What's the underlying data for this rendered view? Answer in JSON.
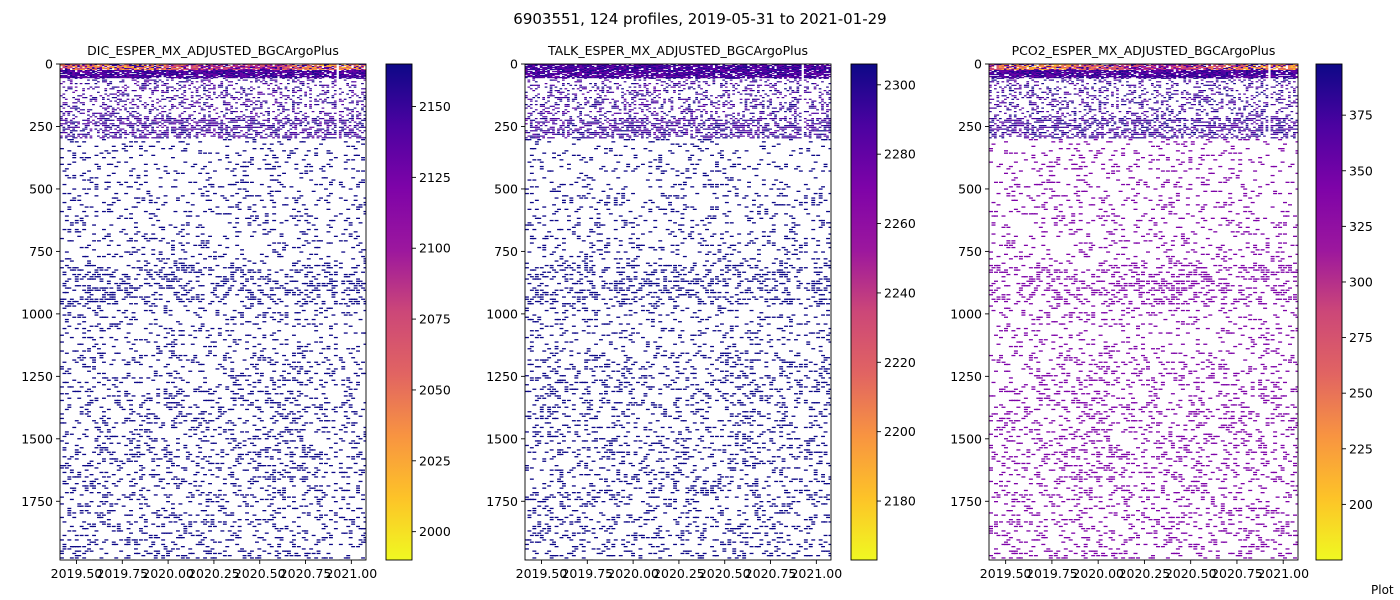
{
  "figure": {
    "suptitle": "6903551, 124 profiles, 2019-05-31 to 2021-01-29",
    "corner_text": "Plot"
  },
  "chart_data": [
    {
      "type": "heatmap",
      "title": "DIC_ESPER_MX_ADJUSTED_BGCArgoPlus",
      "x_range": [
        2019.41,
        2021.08
      ],
      "x_ticks": [
        2019.5,
        2019.75,
        2020.0,
        2020.25,
        2020.5,
        2020.75,
        2021.0
      ],
      "x_tick_labels": [
        "2019.50",
        "2019.75",
        "2020.00",
        "2020.25",
        "2020.50",
        "2020.75",
        "2021.00"
      ],
      "y_range": [
        0,
        1985
      ],
      "y_inverted": true,
      "y_ticks": [
        0,
        250,
        500,
        750,
        1000,
        1250,
        1500,
        1750
      ],
      "colormap": "plasma_r",
      "colorbar_range": [
        1990,
        2165
      ],
      "colorbar_ticks": [
        2000,
        2025,
        2050,
        2075,
        2100,
        2125,
        2150
      ],
      "surface_hot": true
    },
    {
      "type": "heatmap",
      "title": "TALK_ESPER_MX_ADJUSTED_BGCArgoPlus",
      "x_range": [
        2019.41,
        2021.08
      ],
      "x_ticks": [
        2019.5,
        2019.75,
        2020.0,
        2020.25,
        2020.5,
        2020.75,
        2021.0
      ],
      "x_tick_labels": [
        "2019.50",
        "2019.75",
        "2020.00",
        "2020.25",
        "2020.50",
        "2020.75",
        "2021.00"
      ],
      "y_range": [
        0,
        1985
      ],
      "y_inverted": true,
      "y_ticks": [
        0,
        250,
        500,
        750,
        1000,
        1250,
        1500,
        1750
      ],
      "colormap": "plasma_r",
      "colorbar_range": [
        2163,
        2306
      ],
      "colorbar_ticks": [
        2180,
        2200,
        2220,
        2240,
        2260,
        2280,
        2300
      ],
      "surface_hot": false
    },
    {
      "type": "heatmap",
      "title": "PCO2_ESPER_MX_ADJUSTED_BGCArgoPlus",
      "x_range": [
        2019.41,
        2021.08
      ],
      "x_ticks": [
        2019.5,
        2019.75,
        2020.0,
        2020.25,
        2020.5,
        2020.75,
        2021.0
      ],
      "x_tick_labels": [
        "2019.50",
        "2019.75",
        "2020.00",
        "2020.25",
        "2020.50",
        "2020.75",
        "2021.00"
      ],
      "y_range": [
        0,
        1985
      ],
      "y_inverted": true,
      "y_ticks": [
        0,
        250,
        500,
        750,
        1000,
        1250,
        1500,
        1750
      ],
      "colormap": "plasma_r",
      "colorbar_range": [
        175,
        398
      ],
      "colorbar_ticks": [
        200,
        225,
        250,
        275,
        300,
        325,
        350,
        375
      ],
      "surface_hot": true
    }
  ]
}
